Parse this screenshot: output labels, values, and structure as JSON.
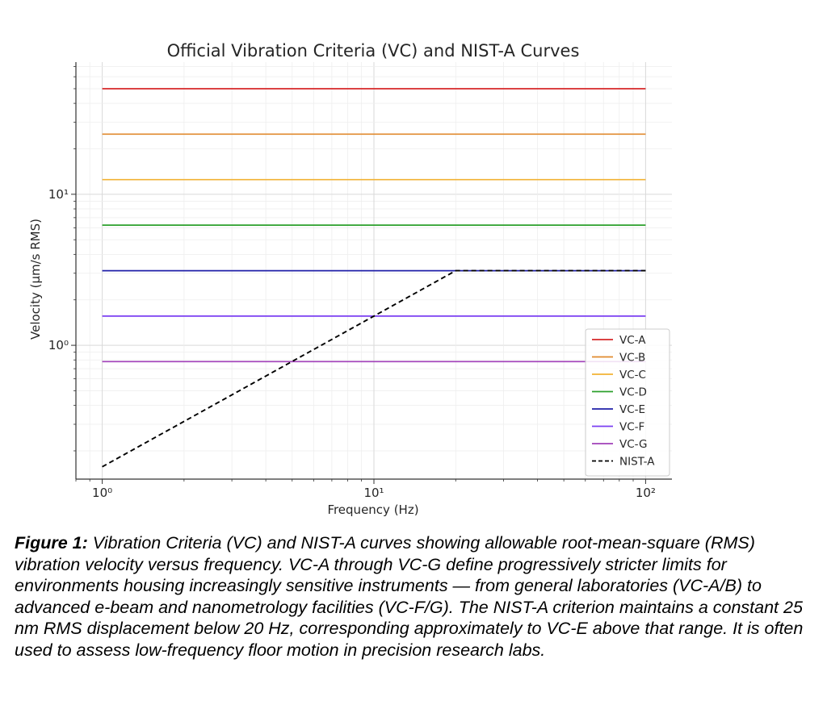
{
  "chart_data": {
    "type": "line",
    "title": "Official Vibration Criteria (VC) and NIST-A Curves",
    "xlabel": "Frequency (Hz)",
    "ylabel": "Velocity (μm/s RMS)",
    "xscale": "log",
    "yscale": "log",
    "xlim": [
      0.8,
      125
    ],
    "ylim": [
      0.13,
      75
    ],
    "xticks": [
      {
        "value": 1,
        "label": "10⁰"
      },
      {
        "value": 10,
        "label": "10¹"
      },
      {
        "value": 100,
        "label": "10²"
      }
    ],
    "yticks": [
      {
        "value": 1,
        "label": "10⁰"
      },
      {
        "value": 10,
        "label": "10¹"
      }
    ],
    "grid": true,
    "legend": "lower-right",
    "series": [
      {
        "name": "VC-A",
        "color": "#d62728",
        "dash": "solid",
        "x": [
          1,
          100
        ],
        "y": [
          50,
          50
        ]
      },
      {
        "name": "VC-B",
        "color": "#e08a2e",
        "dash": "solid",
        "x": [
          1,
          100
        ],
        "y": [
          25,
          25
        ]
      },
      {
        "name": "VC-C",
        "color": "#f2b233",
        "dash": "solid",
        "x": [
          1,
          100
        ],
        "y": [
          12.5,
          12.5
        ]
      },
      {
        "name": "VC-D",
        "color": "#2ca02c",
        "dash": "solid",
        "x": [
          1,
          100
        ],
        "y": [
          6.25,
          6.25
        ]
      },
      {
        "name": "VC-E",
        "color": "#1f1fa8",
        "dash": "solid",
        "x": [
          1,
          100
        ],
        "y": [
          3.12,
          3.12
        ]
      },
      {
        "name": "VC-F",
        "color": "#7b3ff2",
        "dash": "solid",
        "x": [
          1,
          100
        ],
        "y": [
          1.56,
          1.56
        ]
      },
      {
        "name": "VC-G",
        "color": "#a13fb8",
        "dash": "solid",
        "x": [
          1,
          100
        ],
        "y": [
          0.78,
          0.78
        ]
      },
      {
        "name": "NIST-A",
        "color": "#000000",
        "dash": "dashed",
        "x": [
          1,
          20,
          100
        ],
        "y": [
          0.157,
          3.12,
          3.12
        ]
      }
    ]
  },
  "caption": {
    "label": "Figure 1:",
    "text": " Vibration Criteria (VC) and NIST-A curves showing allowable root-mean-square (RMS) vibration velocity versus frequency. VC-A through VC-G define progressively stricter limits for environments housing increasingly sensitive instruments — from general laboratories (VC-A/B) to advanced e-beam and nanometrology facilities (VC-F/G). The NIST-A criterion maintains a constant 25 nm RMS displacement below 20 Hz, corresponding approximately to VC-E above that range. It is often used to assess low-frequency floor motion in precision research labs."
  }
}
